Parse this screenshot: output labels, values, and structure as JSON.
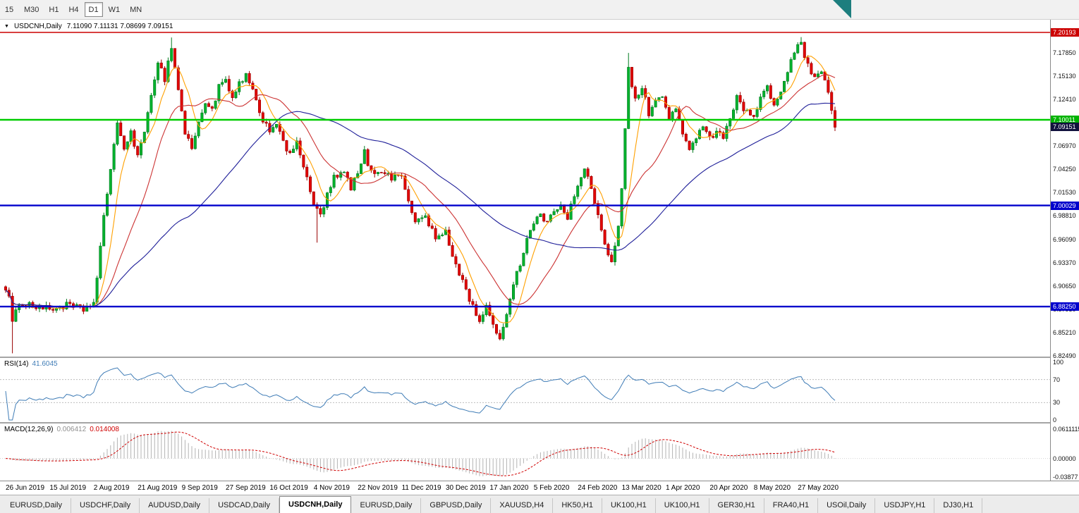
{
  "toolbar": {
    "timeframes": [
      "15",
      "M30",
      "H1",
      "H4",
      "D1",
      "W1",
      "MN"
    ],
    "active": "D1"
  },
  "chart": {
    "symbol_title": "USDCNH,Daily",
    "ohlc": "7.11090 7.11131 7.08699 7.09151",
    "y_axis_labels": [
      "7.17850",
      "7.15130",
      "7.12410",
      "7.09690",
      "7.06970",
      "7.04250",
      "7.01530",
      "6.98810",
      "6.96090",
      "6.93370",
      "6.90650",
      "6.87930",
      "6.85210",
      "6.82490"
    ],
    "price_badges": [
      {
        "label": "7.20193",
        "value": 7.20193,
        "color": "#cc0000",
        "name": "resistance-level"
      },
      {
        "label": "7.10011",
        "value": 7.10011,
        "color": "#00b300",
        "name": "green-level"
      },
      {
        "label": "7.09151",
        "value": 7.09151,
        "color": "#11113d",
        "name": "current-price"
      },
      {
        "label": "7.00029",
        "value": 7.00029,
        "color": "#0000cc",
        "name": "blue-level-7000"
      },
      {
        "label": "6.88250",
        "value": 6.8825,
        "color": "#0000cc",
        "name": "blue-level-68825"
      }
    ],
    "x_axis_labels": [
      "26 Jun 2019",
      "15 Jul 2019",
      "2 Aug 2019",
      "21 Aug 2019",
      "9 Sep 2019",
      "27 Sep 2019",
      "16 Oct 2019",
      "4 Nov 2019",
      "22 Nov 2019",
      "11 Dec 2019",
      "30 Dec 2019",
      "17 Jan 2020",
      "5 Feb 2020",
      "24 Feb 2020",
      "13 Mar 2020",
      "1 Apr 2020",
      "20 Apr 2020",
      "8 May 2020",
      "27 May 2020"
    ]
  },
  "rsi": {
    "name": "RSI(14)",
    "value": "41.6045",
    "axis_labels": [
      "100",
      "70",
      "30",
      "0"
    ],
    "axis_values": [
      100,
      70,
      30,
      0
    ],
    "levels": [
      70,
      30
    ],
    "color": "#3f7cb6"
  },
  "macd": {
    "name": "MACD(12,26,9)",
    "main_value": "0.006412",
    "signal_value": "0.014008",
    "axis_labels": [
      "0.0611115",
      "0.00000",
      "-0.03877"
    ],
    "axis_values": [
      0.0611,
      0,
      -0.03877
    ],
    "histogram_color": "#b3b3b3",
    "signal_color": "#d00000"
  },
  "tabs": {
    "active_index": 4,
    "items": [
      "EURUSD,Daily",
      "USDCHF,Daily",
      "AUDUSD,Daily",
      "USDCAD,Daily",
      "USDCNH,Daily",
      "EURUSD,Daily",
      "GBPUSD,Daily",
      "XAUUSD,H4",
      "HK50,H1",
      "UK100,H1",
      "UK100,H1",
      "GER30,H1",
      "FRA40,H1",
      "USOil,Daily",
      "USDJPY,H1",
      "DJ30,H1"
    ]
  },
  "chart_data": {
    "type": "candlestick",
    "symbol": "USDCNH",
    "timeframe": "Daily",
    "bar_count": 246,
    "visible_price_range": [
      6.8243,
      7.2126
    ],
    "levels": [
      {
        "value": 7.20193,
        "color": "#cc0000",
        "width": 1.4
      },
      {
        "value": 7.10011,
        "color": "#00cc00",
        "width": 2.4
      },
      {
        "value": 7.00029,
        "color": "#0000cc",
        "width": 2.4
      },
      {
        "value": 6.8825,
        "color": "#0000cc",
        "width": 2.4
      }
    ],
    "colors": {
      "up": "#00b22d",
      "up_stroke": "#007a1e",
      "down": "#e10000",
      "down_stroke": "#990000"
    },
    "moving_averages": [
      {
        "period": 7,
        "color": "#ffa000"
      },
      {
        "period": 19,
        "color": "#cc3333"
      },
      {
        "period": 55,
        "color": "#1f1f99"
      }
    ],
    "price_anchors": [
      [
        0,
        6.905
      ],
      [
        1,
        6.893
      ],
      [
        2,
        6.862
      ],
      [
        4,
        6.888
      ],
      [
        8,
        6.884
      ],
      [
        13,
        6.879
      ],
      [
        18,
        6.884
      ],
      [
        23,
        6.879
      ],
      [
        26,
        6.887
      ],
      [
        27,
        6.915
      ],
      [
        29,
        6.985
      ],
      [
        31,
        7.045
      ],
      [
        33,
        7.098
      ],
      [
        35,
        7.062
      ],
      [
        37,
        7.088
      ],
      [
        39,
        7.058
      ],
      [
        41,
        7.082
      ],
      [
        43,
        7.132
      ],
      [
        45,
        7.168
      ],
      [
        47,
        7.148
      ],
      [
        49,
        7.186
      ],
      [
        51,
        7.135
      ],
      [
        53,
        7.085
      ],
      [
        55,
        7.068
      ],
      [
        57,
        7.095
      ],
      [
        59,
        7.122
      ],
      [
        61,
        7.112
      ],
      [
        63,
        7.138
      ],
      [
        65,
        7.146
      ],
      [
        67,
        7.122
      ],
      [
        69,
        7.142
      ],
      [
        71,
        7.152
      ],
      [
        73,
        7.132
      ],
      [
        75,
        7.108
      ],
      [
        78,
        7.088
      ],
      [
        80,
        7.098
      ],
      [
        82,
        7.072
      ],
      [
        84,
        7.058
      ],
      [
        86,
        7.078
      ],
      [
        88,
        7.044
      ],
      [
        91,
        7.002
      ],
      [
        93,
        6.988
      ],
      [
        95,
        7.012
      ],
      [
        97,
        7.032
      ],
      [
        100,
        7.038
      ],
      [
        102,
        7.022
      ],
      [
        104,
        7.036
      ],
      [
        106,
        7.062
      ],
      [
        108,
        7.038
      ],
      [
        111,
        7.042
      ],
      [
        114,
        7.032
      ],
      [
        117,
        7.038
      ],
      [
        119,
        7.002
      ],
      [
        121,
        6.982
      ],
      [
        124,
        6.988
      ],
      [
        127,
        6.962
      ],
      [
        130,
        6.968
      ],
      [
        132,
        6.942
      ],
      [
        134,
        6.922
      ],
      [
        136,
        6.902
      ],
      [
        138,
        6.882
      ],
      [
        140,
        6.867
      ],
      [
        142,
        6.882
      ],
      [
        144,
        6.858
      ],
      [
        146,
        6.848
      ],
      [
        148,
        6.872
      ],
      [
        150,
        6.912
      ],
      [
        152,
        6.932
      ],
      [
        154,
        6.962
      ],
      [
        156,
        6.978
      ],
      [
        158,
        6.992
      ],
      [
        160,
        6.978
      ],
      [
        162,
        6.996
      ],
      [
        164,
        7.002
      ],
      [
        166,
        6.988
      ],
      [
        169,
        7.022
      ],
      [
        171,
        7.042
      ],
      [
        173,
        7.022
      ],
      [
        175,
        6.988
      ],
      [
        177,
        6.952
      ],
      [
        179,
        6.932
      ],
      [
        181,
        6.978
      ],
      [
        182,
        7.022
      ],
      [
        184,
        7.162
      ],
      [
        186,
        7.122
      ],
      [
        188,
        7.138
      ],
      [
        190,
        7.108
      ],
      [
        192,
        7.122
      ],
      [
        194,
        7.126
      ],
      [
        196,
        7.102
      ],
      [
        198,
        7.116
      ],
      [
        200,
        7.082
      ],
      [
        202,
        7.062
      ],
      [
        204,
        7.082
      ],
      [
        206,
        7.096
      ],
      [
        208,
        7.078
      ],
      [
        210,
        7.088
      ],
      [
        212,
        7.082
      ],
      [
        214,
        7.098
      ],
      [
        216,
        7.132
      ],
      [
        218,
        7.112
      ],
      [
        221,
        7.102
      ],
      [
        223,
        7.126
      ],
      [
        225,
        7.136
      ],
      [
        227,
        7.118
      ],
      [
        229,
        7.132
      ],
      [
        231,
        7.158
      ],
      [
        233,
        7.178
      ],
      [
        235,
        7.19
      ],
      [
        237,
        7.162
      ],
      [
        239,
        7.148
      ],
      [
        241,
        7.152
      ],
      [
        243,
        7.135
      ],
      [
        244,
        7.111
      ],
      [
        245,
        7.0915
      ]
    ],
    "wicks": [
      {
        "i": 2,
        "low": 6.828
      },
      {
        "i": 49,
        "high": 7.196
      },
      {
        "i": 92,
        "low": 6.957
      },
      {
        "i": 146,
        "low": 6.8455
      },
      {
        "i": 184,
        "high": 7.178
      },
      {
        "i": 235,
        "high": 7.1965
      },
      {
        "i": 245,
        "high": 7.1113,
        "low": 7.087
      }
    ]
  }
}
